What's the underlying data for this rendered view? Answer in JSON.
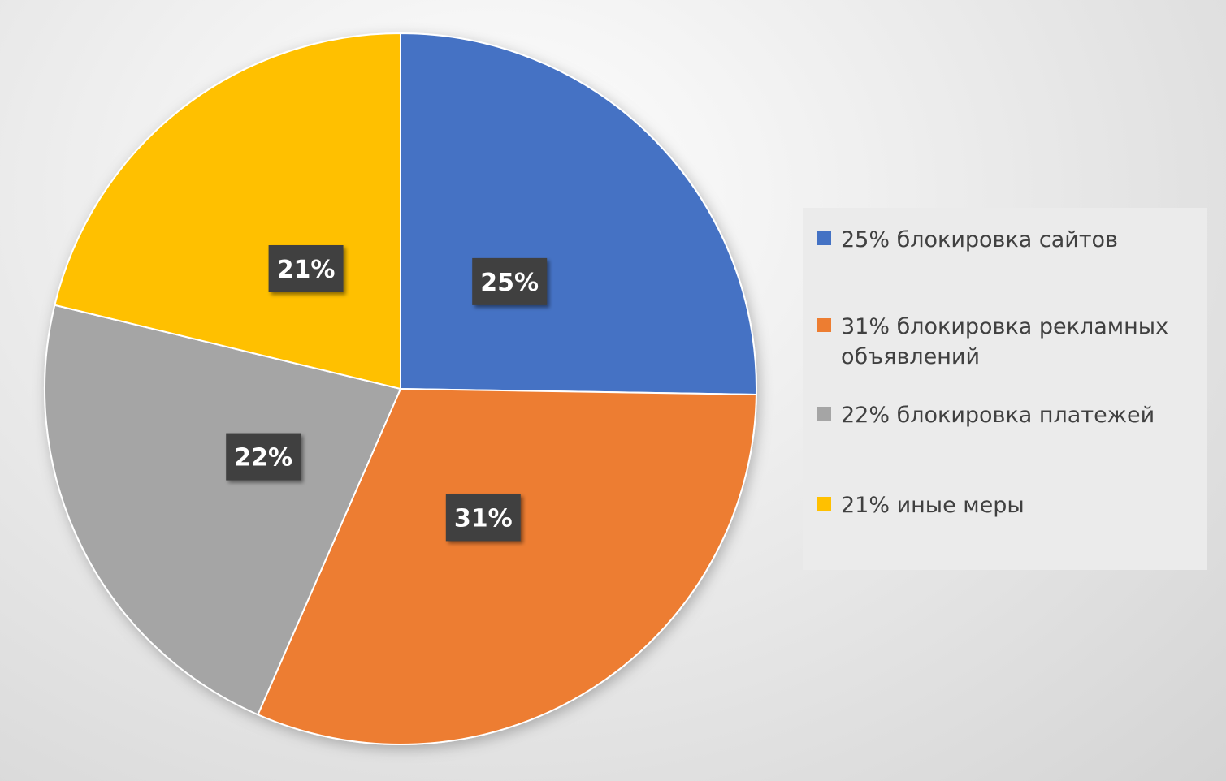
{
  "chart_data": {
    "type": "pie",
    "start_angle_deg": 0,
    "direction": "clockwise",
    "slices": [
      {
        "label": "25% блокировка сайтов",
        "value": 25,
        "data_label": "25%",
        "color": "#4472C4"
      },
      {
        "label": "31% блокировка рекламных объявлений",
        "value": 31,
        "data_label": "31%",
        "color": "#ED7D31"
      },
      {
        "label": "22% блокировка платежей",
        "value": 22,
        "data_label": "22%",
        "color": "#A5A5A5"
      },
      {
        "label": "21% иные меры",
        "value": 21,
        "data_label": "21%",
        "color": "#FFC000"
      }
    ],
    "legend_position": "right",
    "data_label_style": {
      "background": "#404040",
      "text_color": "#FFFFFF"
    }
  }
}
